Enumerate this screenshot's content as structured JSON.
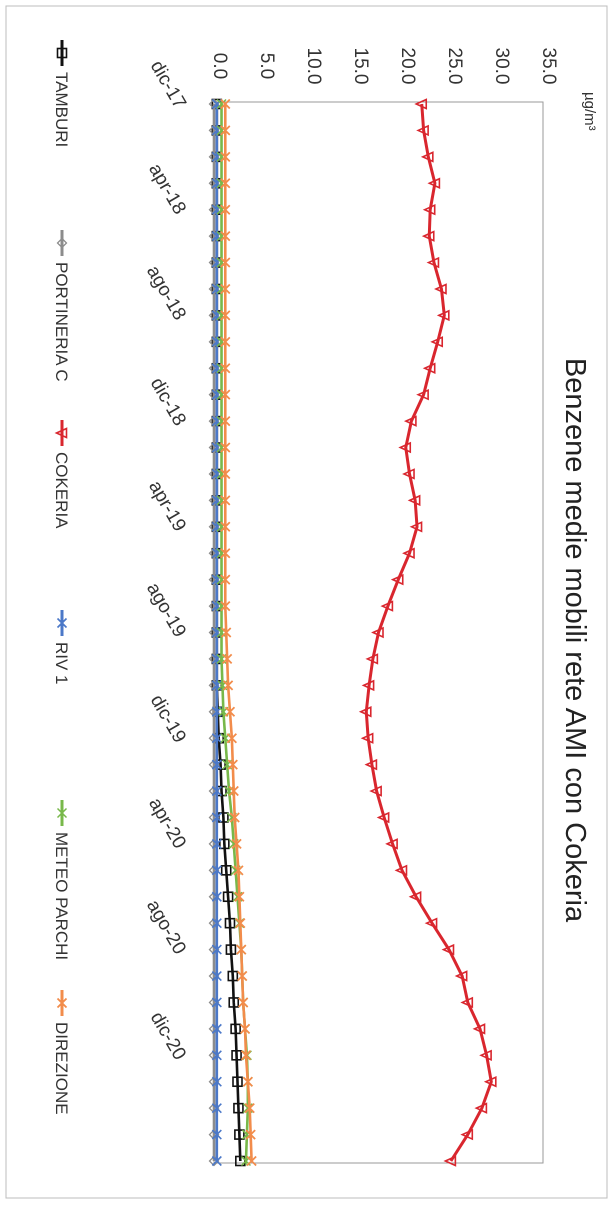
{
  "chart_data": {
    "type": "line",
    "orientation": "rotated-90-clockwise",
    "title": "Benzene medie mobili rete AMI con Cokeria",
    "ylabel": "µg/m³",
    "ylim": [
      0,
      35
    ],
    "yticks": [
      "0.0",
      "5.0",
      "10.0",
      "15.0",
      "20.0",
      "25.0",
      "30.0",
      "35.0"
    ],
    "x_tick_labels": [
      "dic-17",
      "apr-18",
      "ago-18",
      "dic-18",
      "apr-19",
      "ago-19",
      "dic-19",
      "apr-20",
      "ago-20",
      "dic-20"
    ],
    "x_tick_index": [
      0,
      4,
      8,
      12,
      16,
      20,
      24,
      28,
      32,
      36
    ],
    "x_count": 41,
    "legend_position": "bottom",
    "grid": false,
    "series": [
      {
        "name": "TAMBURI",
        "color": "#111111",
        "marker": "square",
        "values": [
          0.3,
          0.3,
          0.3,
          0.3,
          0.3,
          0.3,
          0.3,
          0.3,
          0.3,
          0.3,
          0.3,
          0.3,
          0.3,
          0.3,
          0.3,
          0.3,
          0.3,
          0.3,
          0.3,
          0.3,
          0.3,
          0.3,
          0.3,
          0.4,
          0.5,
          0.7,
          0.8,
          1.0,
          1.1,
          1.3,
          1.5,
          1.7,
          1.8,
          2.0,
          2.1,
          2.3,
          2.4,
          2.5,
          2.6,
          2.7,
          2.8
        ]
      },
      {
        "name": "PORTINERIA C",
        "color": "#8c8c8c",
        "marker": "diamond",
        "values": [
          0.0,
          0.0,
          0.0,
          0.0,
          0.0,
          0.0,
          0.0,
          0.0,
          0.0,
          0.0,
          0.0,
          0.0,
          0.0,
          0.0,
          0.0,
          0.0,
          0.0,
          0.0,
          0.0,
          0.0,
          0.0,
          0.0,
          0.0,
          0.0,
          0.0,
          0.0,
          0.0,
          0.0,
          0.0,
          0.0,
          0.0,
          0.0,
          0.0,
          0.0,
          0.0,
          0.0,
          0.0,
          0.0,
          0.0,
          0.0,
          0.0
        ]
      },
      {
        "name": "COKERIA",
        "color": "#d9262e",
        "marker": "triangle",
        "values": [
          22.1,
          22.3,
          22.8,
          23.5,
          23.0,
          22.9,
          23.4,
          24.2,
          24.5,
          23.8,
          23.0,
          22.3,
          21.0,
          20.4,
          20.8,
          21.4,
          21.6,
          20.8,
          19.6,
          18.5,
          17.5,
          16.9,
          16.5,
          16.2,
          16.4,
          16.8,
          17.3,
          18.1,
          19.0,
          20.0,
          21.5,
          23.2,
          25.0,
          26.4,
          27.0,
          28.3,
          29.0,
          29.5,
          28.5,
          27.0,
          25.2
        ]
      },
      {
        "name": "RIV 1",
        "color": "#4b78c8",
        "marker": "x",
        "values": [
          0.3,
          0.3,
          0.3,
          0.3,
          0.3,
          0.3,
          0.3,
          0.3,
          0.3,
          0.3,
          0.3,
          0.3,
          0.3,
          0.3,
          0.3,
          0.3,
          0.3,
          0.3,
          0.3,
          0.3,
          0.3,
          0.3,
          0.3,
          0.3,
          0.3,
          0.3,
          0.3,
          0.3,
          0.3,
          0.3,
          0.3,
          0.3,
          0.3,
          0.3,
          0.3,
          0.3,
          0.3,
          0.3,
          0.3,
          0.3,
          0.3
        ]
      },
      {
        "name": "METEO PARCHI",
        "color": "#78b84a",
        "marker": "star",
        "values": [
          0.8,
          0.8,
          0.8,
          0.8,
          0.8,
          0.8,
          0.8,
          0.8,
          0.8,
          0.8,
          0.8,
          0.8,
          0.8,
          0.8,
          0.8,
          0.8,
          0.8,
          0.8,
          0.8,
          0.8,
          0.8,
          0.8,
          0.9,
          1.0,
          1.2,
          1.4,
          1.6,
          1.9,
          2.1,
          2.3,
          2.5,
          2.7,
          2.9,
          3.0,
          3.1,
          3.3,
          3.5,
          3.6,
          3.6,
          3.5,
          3.4
        ]
      },
      {
        "name": "DIREZIONE",
        "color": "#f28c4b",
        "marker": "cross",
        "values": [
          1.2,
          1.2,
          1.2,
          1.2,
          1.2,
          1.2,
          1.2,
          1.2,
          1.2,
          1.2,
          1.2,
          1.2,
          1.2,
          1.2,
          1.2,
          1.2,
          1.2,
          1.2,
          1.2,
          1.2,
          1.3,
          1.4,
          1.5,
          1.7,
          1.9,
          2.0,
          2.1,
          2.2,
          2.4,
          2.6,
          2.7,
          2.8,
          2.9,
          3.0,
          3.1,
          3.3,
          3.4,
          3.6,
          3.8,
          3.9,
          4.0
        ]
      }
    ]
  }
}
